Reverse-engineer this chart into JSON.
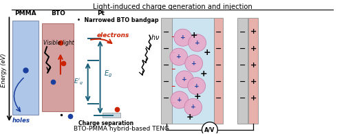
{
  "title_top": "Light-induced charge generation and injection",
  "title_bottom": "BTO-PMMA hybrid-based TENG",
  "ylabel": "Energy (eV)",
  "label_pmma": "PMMA",
  "label_bto": "BTO",
  "label_pt": "Pt",
  "label_narrowed": "•  Narrowed BTO bandgap",
  "label_visible": "Visible light",
  "label_electrons": "electrons",
  "label_holes": "holes",
  "label_charge_sep": "Charge separation",
  "label_hv": "hν",
  "label_AV": "A/V",
  "pmma_color": "#aec6e8",
  "bto_color": "#d4a0a0",
  "pt_color": "#c8d8e0",
  "teng_gray_color": "#c8c8c8",
  "teng_blue_color": "#cce4f0",
  "teng_pink_color": "#e8b0aa",
  "energy_color": "#1a5f7a",
  "electron_color": "#cc2200",
  "hole_color": "#1a3f9f",
  "bg_color": "#ffffff"
}
